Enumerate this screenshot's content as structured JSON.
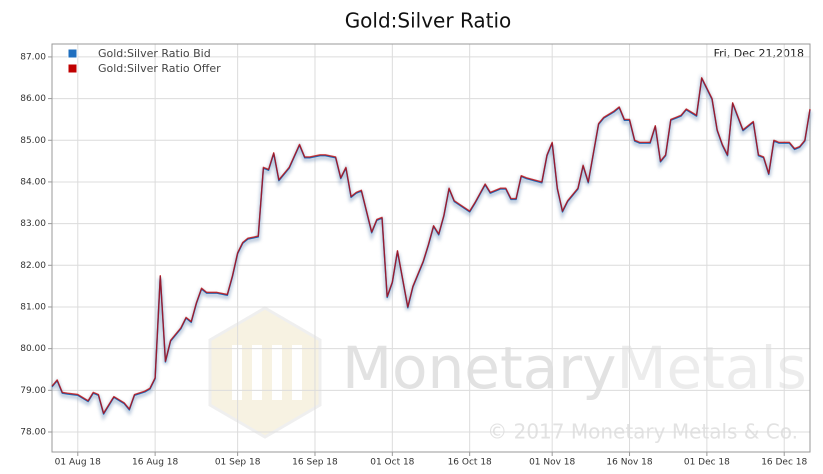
{
  "chart_data": {
    "type": "line",
    "title": "Gold:Silver Ratio",
    "annotation": "Fri, Dec 21,2018",
    "watermark": "MonetaryMetals",
    "watermark_parts": [
      "Monetary",
      "Metals"
    ],
    "copyright": "© 2017 Monetary Metals & Co.",
    "x": [
      "2018-07-27",
      "2018-07-28",
      "2018-07-29",
      "2018-07-30",
      "2018-08-01",
      "2018-08-03",
      "2018-08-04",
      "2018-08-05",
      "2018-08-06",
      "2018-08-07",
      "2018-08-08",
      "2018-08-10",
      "2018-08-11",
      "2018-08-12",
      "2018-08-14",
      "2018-08-15",
      "2018-08-16",
      "2018-08-17",
      "2018-08-18",
      "2018-08-19",
      "2018-08-21",
      "2018-08-22",
      "2018-08-23",
      "2018-08-24",
      "2018-08-25",
      "2018-08-26",
      "2018-08-28",
      "2018-08-30",
      "2018-08-31",
      "2018-09-01",
      "2018-09-02",
      "2018-09-03",
      "2018-09-05",
      "2018-09-06",
      "2018-09-07",
      "2018-09-08",
      "2018-09-09",
      "2018-09-10",
      "2018-09-11",
      "2018-09-13",
      "2018-09-14",
      "2018-09-15",
      "2018-09-17",
      "2018-09-18",
      "2018-09-20",
      "2018-09-21",
      "2018-09-22",
      "2018-09-23",
      "2018-09-24",
      "2018-09-25",
      "2018-09-27",
      "2018-09-28",
      "2018-09-29",
      "2018-09-30",
      "2018-10-01",
      "2018-10-02",
      "2018-10-04",
      "2018-10-05",
      "2018-10-06",
      "2018-10-07",
      "2018-10-08",
      "2018-10-09",
      "2018-10-10",
      "2018-10-11",
      "2018-10-12",
      "2018-10-13",
      "2018-10-16",
      "2018-10-17",
      "2018-10-19",
      "2018-10-20",
      "2018-10-22",
      "2018-10-23",
      "2018-10-24",
      "2018-10-25",
      "2018-10-26",
      "2018-10-27",
      "2018-10-30",
      "2018-10-31",
      "2018-11-01",
      "2018-11-02",
      "2018-11-03",
      "2018-11-04",
      "2018-11-06",
      "2018-11-07",
      "2018-11-08",
      "2018-11-10",
      "2018-11-11",
      "2018-11-13",
      "2018-11-14",
      "2018-11-15",
      "2018-11-16",
      "2018-11-17",
      "2018-11-18",
      "2018-11-20",
      "2018-11-21",
      "2018-11-22",
      "2018-11-23",
      "2018-11-24",
      "2018-11-25",
      "2018-11-26",
      "2018-11-27",
      "2018-11-29",
      "2018-11-30",
      "2018-12-02",
      "2018-12-03",
      "2018-12-04",
      "2018-12-05",
      "2018-12-06",
      "2018-12-08",
      "2018-12-09",
      "2018-12-10",
      "2018-12-11",
      "2018-12-12",
      "2018-12-13",
      "2018-12-14",
      "2018-12-15",
      "2018-12-17",
      "2018-12-18",
      "2018-12-19",
      "2018-12-20",
      "2018-12-21"
    ],
    "series": [
      {
        "name": "Gold:Silver Ratio Bid",
        "color": "#1f6fbf",
        "values": [
          79.08,
          79.23,
          78.93,
          78.91,
          78.88,
          78.73,
          78.93,
          78.88,
          78.43,
          78.63,
          78.83,
          78.68,
          78.53,
          78.88,
          78.96,
          79.03,
          79.28,
          81.73,
          79.68,
          80.18,
          80.48,
          80.73,
          80.63,
          81.08,
          81.43,
          81.33,
          81.33,
          81.28,
          81.73,
          82.28,
          82.53,
          82.63,
          82.68,
          84.33,
          84.28,
          84.68,
          84.03,
          84.18,
          84.33,
          84.88,
          84.58,
          84.58,
          84.63,
          84.63,
          84.58,
          84.08,
          84.33,
          83.63,
          83.73,
          83.78,
          82.78,
          83.08,
          83.13,
          81.23,
          81.58,
          82.33,
          80.98,
          81.48,
          81.78,
          82.08,
          82.48,
          82.93,
          82.73,
          83.18,
          83.83,
          83.53,
          83.28,
          83.48,
          83.93,
          83.73,
          83.83,
          83.83,
          83.58,
          83.58,
          84.13,
          84.08,
          83.98,
          84.63,
          84.93,
          83.83,
          83.28,
          83.53,
          83.83,
          84.38,
          83.98,
          85.38,
          85.53,
          85.68,
          85.78,
          85.48,
          85.48,
          84.98,
          84.93,
          84.93,
          85.33,
          84.48,
          84.63,
          85.48,
          85.53,
          85.58,
          85.73,
          85.58,
          86.48,
          85.98,
          85.23,
          84.88,
          84.63,
          85.88,
          85.23,
          85.33,
          85.43,
          84.63,
          84.58,
          84.18,
          84.98,
          84.93,
          84.93,
          84.78,
          84.83,
          84.98,
          85.73
        ]
      },
      {
        "name": "Gold:Silver Ratio Offer",
        "color": "#c00000",
        "values": [
          79.1,
          79.25,
          78.95,
          78.93,
          78.9,
          78.75,
          78.95,
          78.9,
          78.45,
          78.65,
          78.85,
          78.7,
          78.55,
          78.9,
          78.98,
          79.05,
          79.3,
          81.75,
          79.7,
          80.2,
          80.5,
          80.75,
          80.65,
          81.1,
          81.45,
          81.35,
          81.35,
          81.3,
          81.75,
          82.3,
          82.55,
          82.65,
          82.7,
          84.35,
          84.3,
          84.7,
          84.05,
          84.2,
          84.35,
          84.9,
          84.6,
          84.6,
          84.65,
          84.65,
          84.6,
          84.1,
          84.35,
          83.65,
          83.75,
          83.8,
          82.8,
          83.1,
          83.15,
          81.25,
          81.6,
          82.35,
          81.0,
          81.5,
          81.8,
          82.1,
          82.5,
          82.95,
          82.75,
          83.2,
          83.85,
          83.55,
          83.3,
          83.5,
          83.95,
          83.75,
          83.85,
          83.85,
          83.6,
          83.6,
          84.15,
          84.1,
          84.0,
          84.65,
          84.95,
          83.85,
          83.3,
          83.55,
          83.85,
          84.4,
          84.0,
          85.4,
          85.55,
          85.7,
          85.8,
          85.5,
          85.5,
          85.0,
          84.95,
          84.95,
          85.35,
          84.5,
          84.65,
          85.5,
          85.55,
          85.6,
          85.75,
          85.6,
          86.5,
          86.0,
          85.25,
          84.9,
          84.65,
          85.9,
          85.25,
          85.35,
          85.45,
          84.65,
          84.6,
          84.2,
          85.0,
          84.95,
          84.95,
          84.8,
          84.85,
          85.0,
          85.75
        ]
      }
    ],
    "xlim": [
      "2018-07-27",
      "2018-12-21"
    ],
    "xticks": [
      {
        "value": "2018-08-01",
        "label": "01 Aug 18"
      },
      {
        "value": "2018-08-16",
        "label": "16 Aug 18"
      },
      {
        "value": "2018-09-01",
        "label": "01 Sep 18"
      },
      {
        "value": "2018-09-16",
        "label": "16 Sep 18"
      },
      {
        "value": "2018-10-01",
        "label": "01 Oct 18"
      },
      {
        "value": "2018-10-16",
        "label": "16 Oct 18"
      },
      {
        "value": "2018-11-01",
        "label": "01 Nov 18"
      },
      {
        "value": "2018-11-16",
        "label": "16 Nov 18"
      },
      {
        "value": "2018-12-01",
        "label": "01 Dec 18"
      },
      {
        "value": "2018-12-16",
        "label": "16 Dec 18"
      }
    ],
    "ylim": [
      77.52,
      87.31
    ],
    "yticks": [
      {
        "value": 78,
        "label": "78.00"
      },
      {
        "value": 79,
        "label": "79.00"
      },
      {
        "value": 80,
        "label": "80.00"
      },
      {
        "value": 81,
        "label": "81.00"
      },
      {
        "value": 82,
        "label": "82.00"
      },
      {
        "value": 83,
        "label": "83.00"
      },
      {
        "value": 84,
        "label": "84.00"
      },
      {
        "value": 85,
        "label": "85.00"
      },
      {
        "value": 86,
        "label": "86.00"
      },
      {
        "value": 87,
        "label": "87.00"
      }
    ],
    "grid": true,
    "legend": "top-left"
  }
}
